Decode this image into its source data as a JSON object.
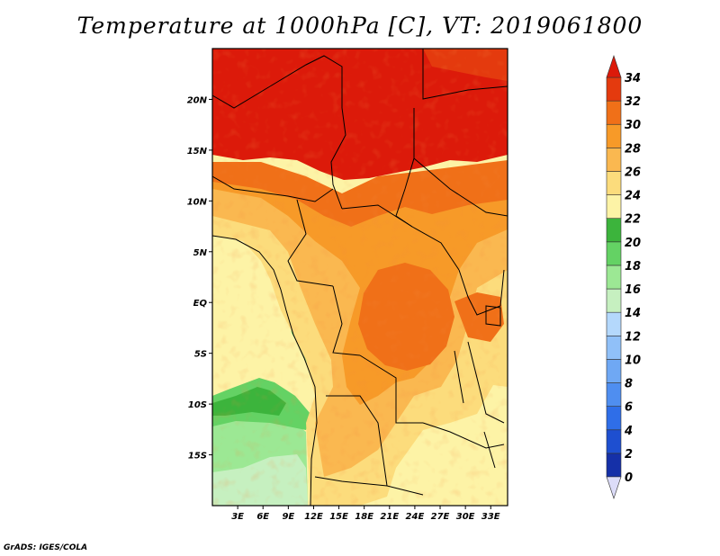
{
  "title": "Temperature at 1000hPa [C], VT: 2019061800",
  "credit": "GrADS: IGES/COLA",
  "map": {
    "variable": "Temperature at 1000hPa",
    "units": "C",
    "valid_time": "2019061800",
    "lon_range": [
      0,
      35
    ],
    "lat_range": [
      -20,
      25
    ],
    "lat_ticks": [
      {
        "value": 20,
        "label": "20N"
      },
      {
        "value": 15,
        "label": "15N"
      },
      {
        "value": 10,
        "label": "10N"
      },
      {
        "value": 5,
        "label": "5N"
      },
      {
        "value": 0,
        "label": "EQ"
      },
      {
        "value": -5,
        "label": "5S"
      },
      {
        "value": -10,
        "label": "10S"
      },
      {
        "value": -15,
        "label": "15S"
      }
    ],
    "lon_ticks": [
      {
        "value": 3,
        "label": "3E"
      },
      {
        "value": 6,
        "label": "6E"
      },
      {
        "value": 9,
        "label": "9E"
      },
      {
        "value": 12,
        "label": "12E"
      },
      {
        "value": 15,
        "label": "15E"
      },
      {
        "value": 18,
        "label": "18E"
      },
      {
        "value": 21,
        "label": "21E"
      },
      {
        "value": 24,
        "label": "24E"
      },
      {
        "value": 27,
        "label": "27E"
      },
      {
        "value": 30,
        "label": "30E"
      },
      {
        "value": 33,
        "label": "33E"
      }
    ]
  },
  "colorbar": {
    "levels": [
      {
        "label": "0",
        "color": "#101070"
      },
      {
        "label": "2",
        "color": "#1530a8"
      },
      {
        "label": "4",
        "color": "#1e4fd0"
      },
      {
        "label": "6",
        "color": "#2f6ee8"
      },
      {
        "label": "8",
        "color": "#4f8ef0"
      },
      {
        "label": "10",
        "color": "#6fa8f4"
      },
      {
        "label": "12",
        "color": "#90c0f8"
      },
      {
        "label": "14",
        "color": "#b4d8fc"
      },
      {
        "label": "16",
        "color": "#c6f0c0"
      },
      {
        "label": "18",
        "color": "#9ce894"
      },
      {
        "label": "20",
        "color": "#64d264"
      },
      {
        "label": "22",
        "color": "#3cb43c"
      },
      {
        "label": "24",
        "color": "#fdf3a6"
      },
      {
        "label": "26",
        "color": "#fcdc7c"
      },
      {
        "label": "28",
        "color": "#fab850"
      },
      {
        "label": "30",
        "color": "#f79a28"
      },
      {
        "label": "32",
        "color": "#f07018"
      },
      {
        "label": "34",
        "color": "#e43a0e"
      }
    ],
    "under_color": "#dcdcf8",
    "over_color": "#dc1a0a"
  }
}
